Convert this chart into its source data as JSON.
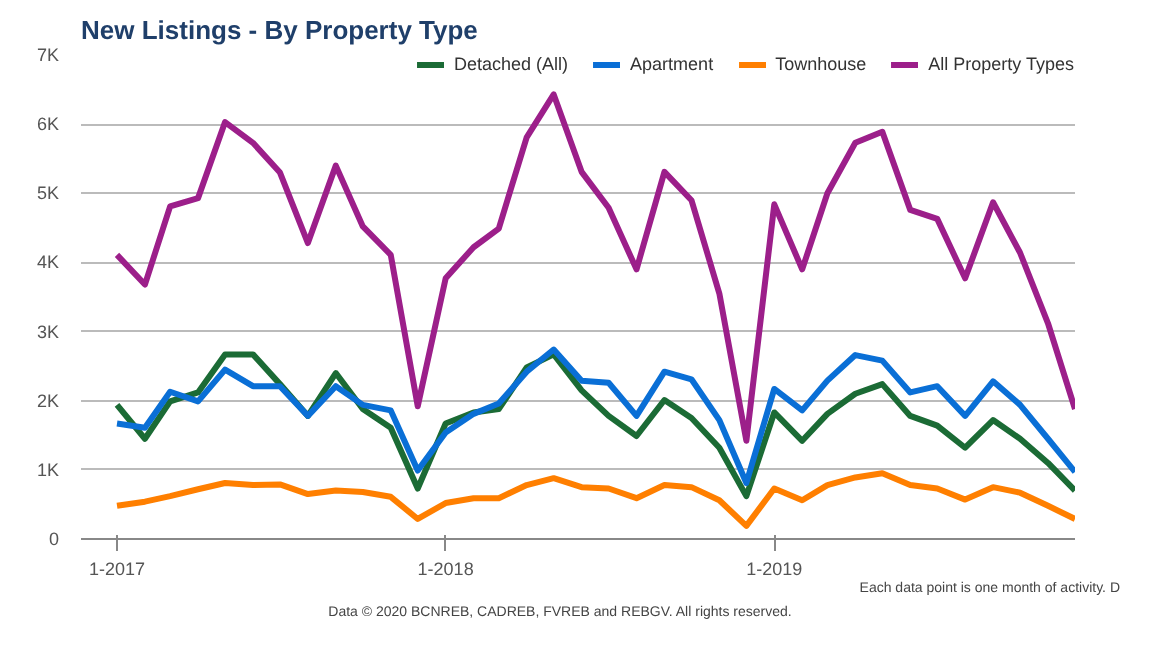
{
  "chart_data": {
    "type": "line",
    "title": "New Listings - By Property Type",
    "x": [
      "2017-01",
      "2017-02",
      "2017-03",
      "2017-04",
      "2017-05",
      "2017-06",
      "2017-07",
      "2017-08",
      "2017-09",
      "2017-10",
      "2017-11",
      "2017-12",
      "2018-01",
      "2018-02",
      "2018-03",
      "2018-04",
      "2018-05",
      "2018-06",
      "2018-07",
      "2018-08",
      "2018-09",
      "2018-10",
      "2018-11",
      "2018-12",
      "2019-01",
      "2019-02",
      "2019-03",
      "2019-04",
      "2019-05",
      "2019-06",
      "2019-07",
      "2019-08",
      "2019-09",
      "2019-10",
      "2019-11",
      "2019-12"
    ],
    "series": [
      {
        "name": "Detached (All)",
        "color": "#1b6b35",
        "values": [
          1940,
          1450,
          1990,
          2120,
          2670,
          2670,
          2240,
          1780,
          2400,
          1880,
          1610,
          730,
          1670,
          1830,
          1880,
          2480,
          2670,
          2150,
          1780,
          1490,
          2010,
          1750,
          1320,
          620,
          1830,
          1420,
          1810,
          2100,
          2240,
          1780,
          1640,
          1320,
          1720,
          1450,
          1100,
          700
        ]
      },
      {
        "name": "Apartment",
        "color": "#0a6fd6",
        "values": [
          1670,
          1610,
          2130,
          1990,
          2450,
          2210,
          2210,
          1780,
          2210,
          1940,
          1860,
          990,
          1540,
          1810,
          1960,
          2420,
          2740,
          2290,
          2260,
          1780,
          2420,
          2310,
          1720,
          810,
          2170,
          1860,
          2290,
          2660,
          2580,
          2120,
          2210,
          1780,
          2280,
          1940,
          1450,
          970
        ]
      },
      {
        "name": "Townhouse",
        "color": "#ff7f00",
        "values": [
          480,
          540,
          620,
          720,
          810,
          780,
          790,
          650,
          700,
          680,
          610,
          290,
          520,
          590,
          590,
          780,
          880,
          750,
          730,
          590,
          780,
          750,
          560,
          190,
          730,
          560,
          780,
          890,
          950,
          780,
          730,
          570,
          750,
          670,
          480,
          290
        ]
      },
      {
        "name": "All Property Types",
        "color": "#9c1f8a",
        "values": [
          4110,
          3680,
          4810,
          4930,
          6030,
          5730,
          5300,
          4280,
          5400,
          4520,
          4110,
          1920,
          3770,
          4220,
          4490,
          5810,
          6430,
          5310,
          4790,
          3900,
          5310,
          4900,
          3550,
          1420,
          4840,
          3900,
          5000,
          5730,
          5890,
          4760,
          4630,
          3770,
          4870,
          4140,
          3120,
          1880
        ]
      }
    ],
    "xlim": [
      "2016-11-22",
      "2019-12-01"
    ],
    "xticks": [
      {
        "value": "2017-01",
        "label": "1-2017"
      },
      {
        "value": "2018-01",
        "label": "1-2018"
      },
      {
        "value": "2019-01",
        "label": "1-2019"
      }
    ],
    "ylim": [
      0,
      7000
    ],
    "yticks": [
      0,
      {
        "value": 1000,
        "label": "1K"
      },
      {
        "value": 2000,
        "label": "2K"
      },
      {
        "value": 3000,
        "label": "3K"
      },
      {
        "value": 4000,
        "label": "4K"
      },
      {
        "value": 5000,
        "label": "5K"
      },
      {
        "value": 6000,
        "label": "6K"
      },
      {
        "value": 7000,
        "label": "7K"
      }
    ],
    "grid": "y",
    "legend": "top",
    "marker": "none",
    "line_style": "solid",
    "annotations": [
      "Each data point is one month of activity. D",
      "Data © 2020 BCNREB, CADREB, FVREB and REBGV. All rights reserved."
    ]
  }
}
